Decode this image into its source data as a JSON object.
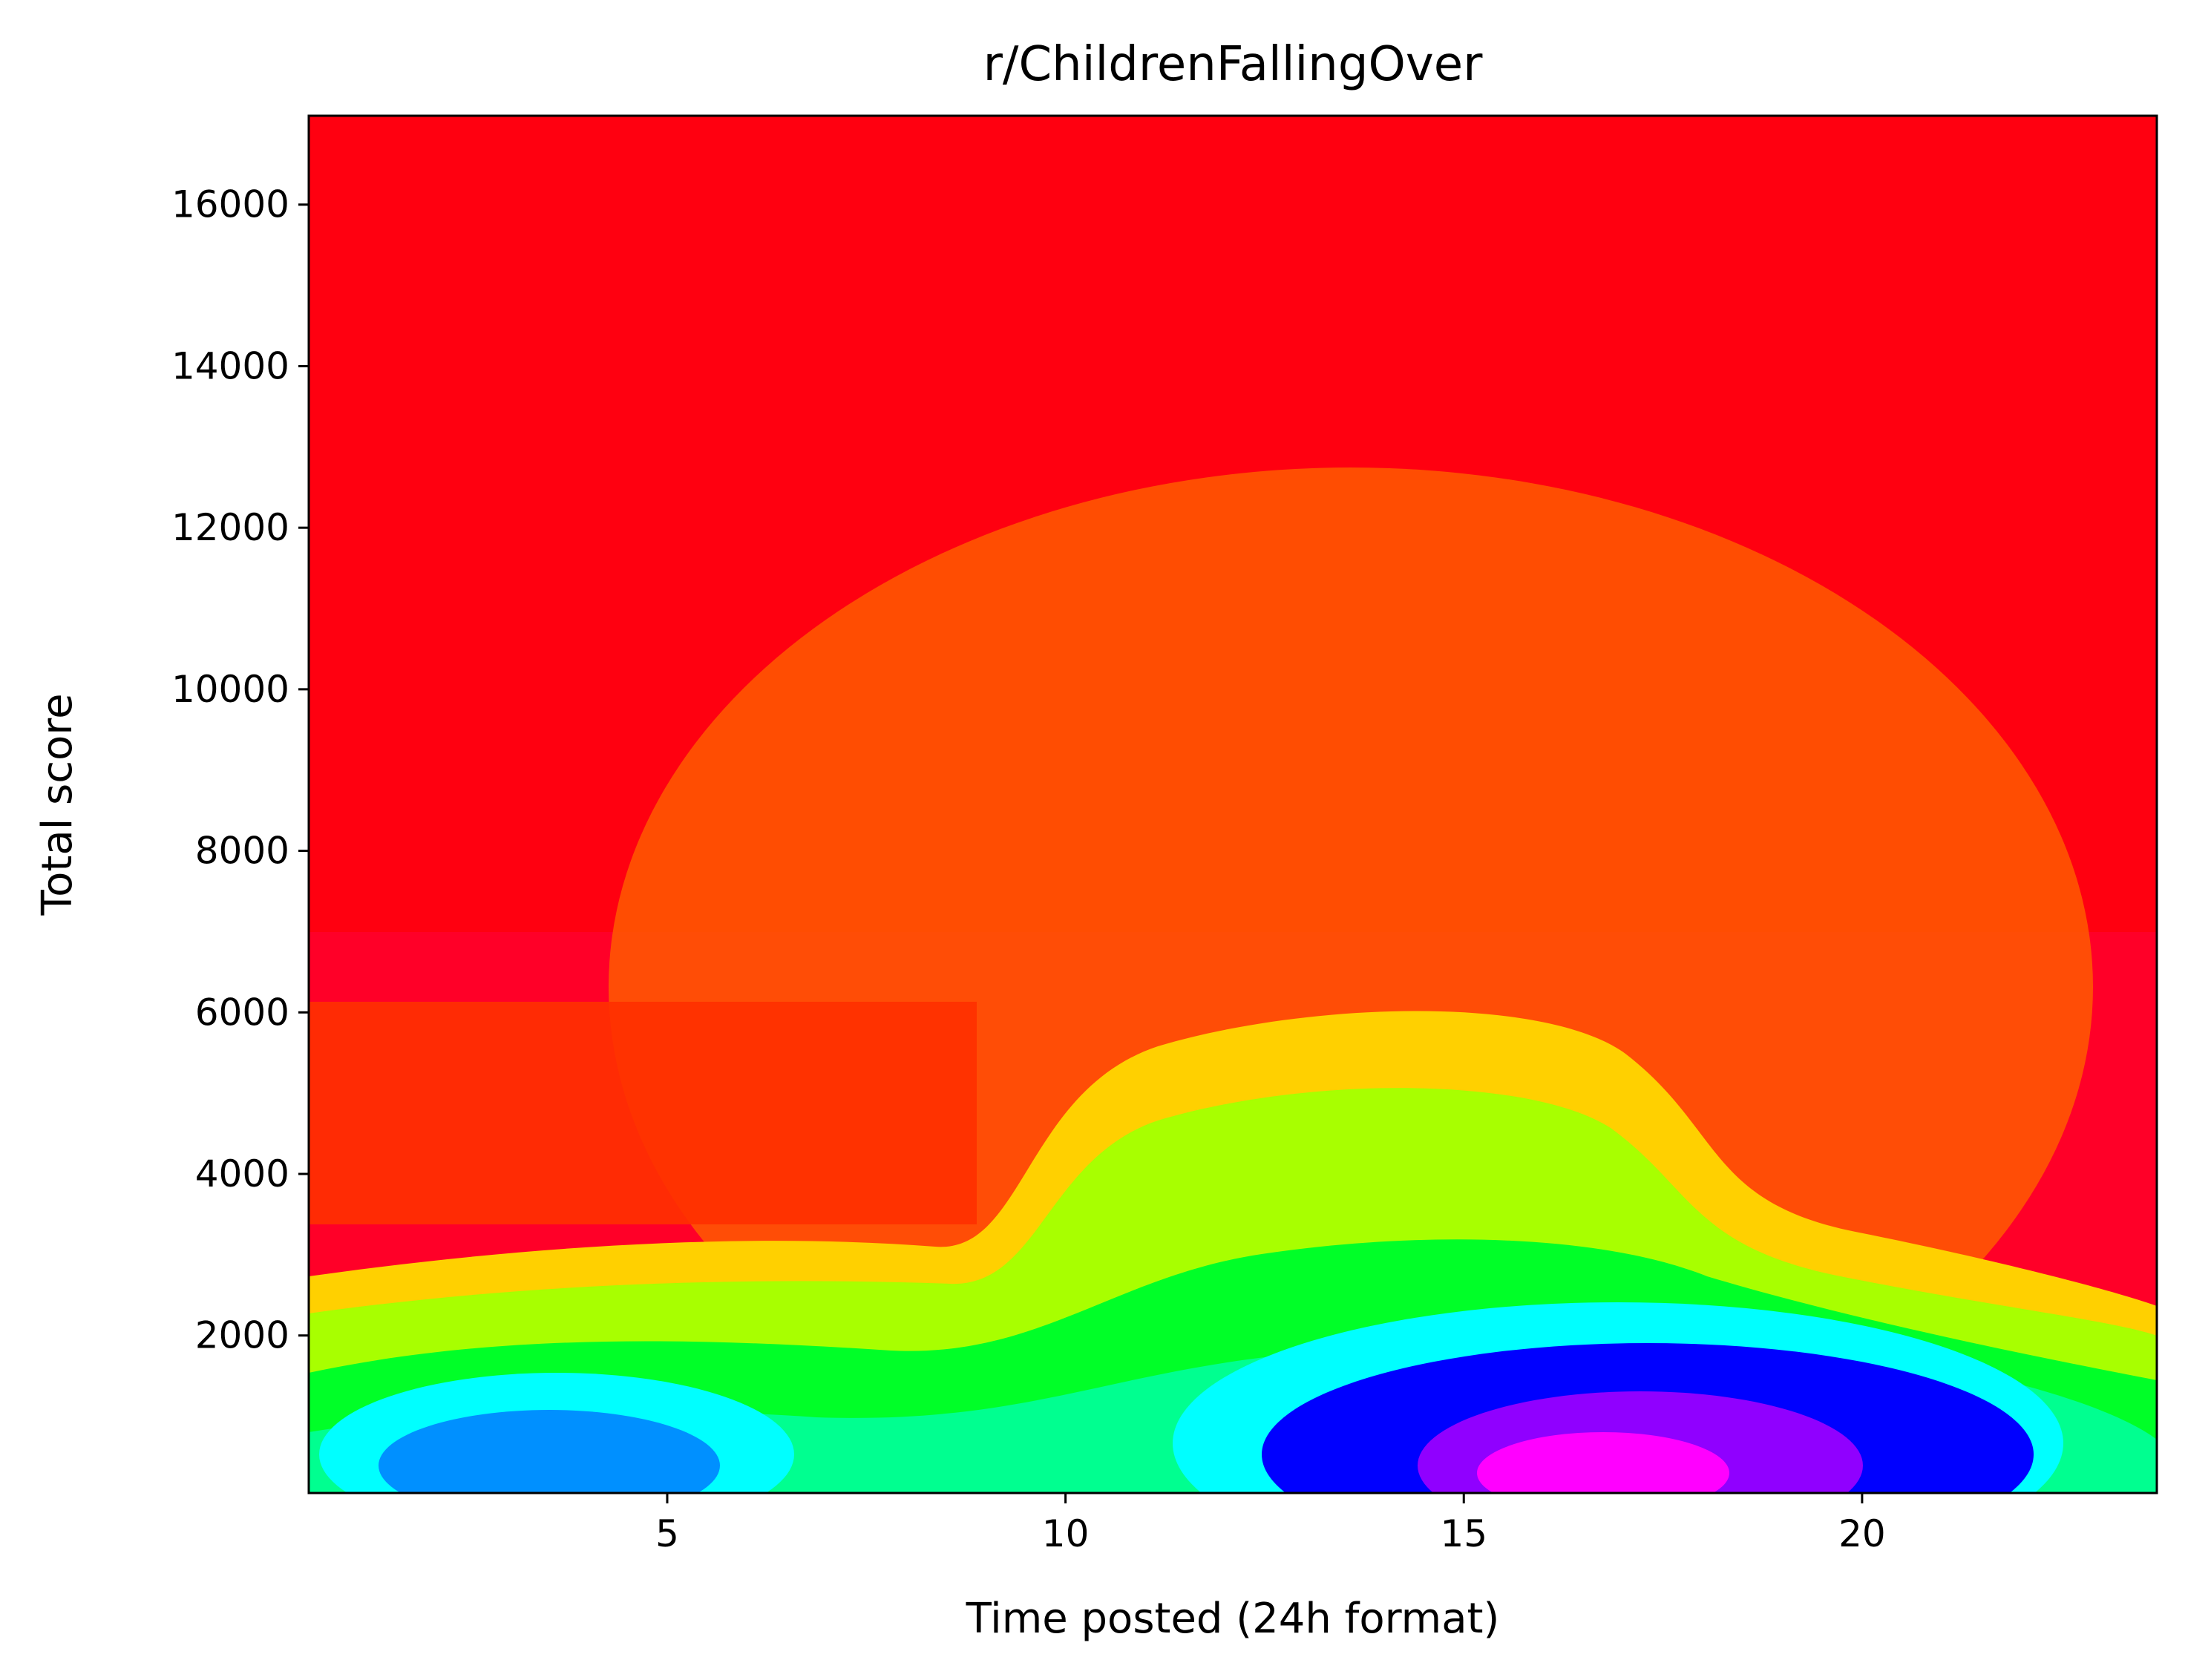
{
  "chart_data": {
    "type": "heatmap",
    "title": "r/ChildrenFallingOver",
    "xlabel": "Time posted (24h format)",
    "ylabel": "Total score",
    "xlim": [
      0.5,
      23.7
    ],
    "ylim": [
      50,
      17100
    ],
    "xticks": [
      5,
      10,
      15,
      20
    ],
    "yticks": [
      2000,
      4000,
      6000,
      8000,
      10000,
      12000,
      14000,
      16000
    ],
    "grid": false,
    "colormap": "hsv",
    "legend": "none",
    "density_hotspots": [
      {
        "x": 17.3,
        "y": 500,
        "level": "highest"
      },
      {
        "x": 15.0,
        "y": 700,
        "level": "high"
      },
      {
        "x": 4.0,
        "y": 500,
        "level": "medium"
      },
      {
        "x": 13.0,
        "y": 3000,
        "level": "low"
      }
    ]
  }
}
